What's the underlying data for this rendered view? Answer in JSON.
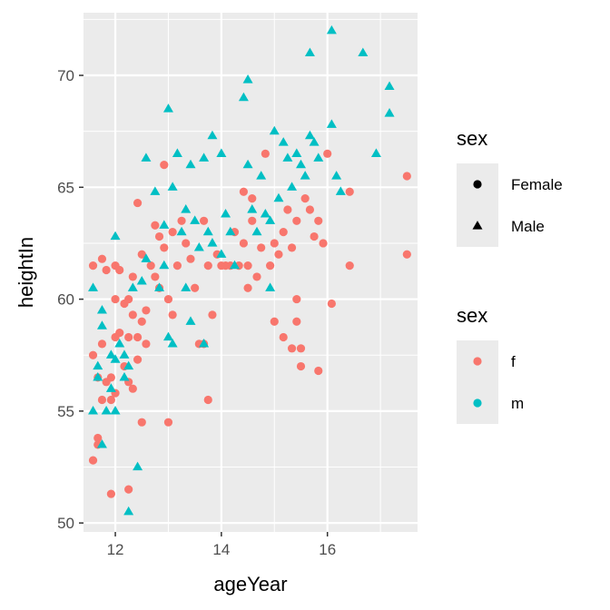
{
  "chart_data": {
    "type": "scatter",
    "xlabel": "ageYear",
    "ylabel": "heightIn",
    "xlim": [
      11.4,
      17.7
    ],
    "ylim": [
      49.6,
      72.8
    ],
    "x_ticks": [
      12,
      14,
      16
    ],
    "y_ticks": [
      50,
      55,
      60,
      65,
      70
    ],
    "grid": true,
    "colors": {
      "f": "#F8766D",
      "m": "#00BFC4"
    },
    "legends": [
      {
        "title": "sex",
        "kind": "shape",
        "entries": [
          {
            "label": "Female",
            "shape": "circle"
          },
          {
            "label": "Male",
            "shape": "triangle"
          }
        ]
      },
      {
        "title": "sex",
        "kind": "color",
        "entries": [
          {
            "label": "f",
            "color": "#F8766D"
          },
          {
            "label": "m",
            "color": "#00BFC4"
          }
        ]
      }
    ],
    "legend_position": "right",
    "series": [
      {
        "name": "f",
        "shape": "circle",
        "color": "#F8766D",
        "points": [
          [
            11.58,
            61.5
          ],
          [
            11.58,
            57.5
          ],
          [
            11.58,
            52.8
          ],
          [
            11.67,
            53.8
          ],
          [
            11.67,
            53.5
          ],
          [
            11.67,
            56.5
          ],
          [
            11.75,
            61.8
          ],
          [
            11.75,
            58.0
          ],
          [
            11.75,
            55.5
          ],
          [
            11.83,
            61.3
          ],
          [
            11.83,
            56.3
          ],
          [
            11.92,
            56.5
          ],
          [
            11.92,
            55.5
          ],
          [
            11.92,
            51.3
          ],
          [
            12.0,
            61.5
          ],
          [
            12.0,
            60.0
          ],
          [
            12.0,
            58.3
          ],
          [
            12.0,
            55.8
          ],
          [
            12.08,
            61.3
          ],
          [
            12.08,
            58.5
          ],
          [
            12.17,
            59.8
          ],
          [
            12.17,
            57.0
          ],
          [
            12.25,
            60.0
          ],
          [
            12.25,
            58.3
          ],
          [
            12.25,
            56.3
          ],
          [
            12.25,
            51.5
          ],
          [
            12.33,
            61.0
          ],
          [
            12.33,
            59.3
          ],
          [
            12.33,
            56.0
          ],
          [
            12.42,
            64.3
          ],
          [
            12.42,
            58.3
          ],
          [
            12.42,
            57.3
          ],
          [
            12.5,
            62.0
          ],
          [
            12.5,
            59.0
          ],
          [
            12.5,
            54.5
          ],
          [
            12.58,
            59.5
          ],
          [
            12.58,
            58.0
          ],
          [
            12.67,
            61.5
          ],
          [
            12.75,
            63.3
          ],
          [
            12.75,
            61.0
          ],
          [
            12.83,
            62.8
          ],
          [
            12.83,
            60.5
          ],
          [
            12.92,
            66.0
          ],
          [
            12.92,
            62.3
          ],
          [
            13.0,
            60.0
          ],
          [
            13.0,
            54.5
          ],
          [
            13.08,
            63.0
          ],
          [
            13.08,
            59.3
          ],
          [
            13.17,
            61.5
          ],
          [
            13.25,
            63.5
          ],
          [
            13.33,
            62.5
          ],
          [
            13.42,
            61.8
          ],
          [
            13.5,
            60.5
          ],
          [
            13.58,
            58.0
          ],
          [
            13.67,
            63.5
          ],
          [
            13.67,
            58.0
          ],
          [
            13.75,
            61.5
          ],
          [
            13.75,
            55.5
          ],
          [
            13.83,
            59.3
          ],
          [
            13.92,
            62.0
          ],
          [
            14.0,
            61.5
          ],
          [
            14.08,
            61.5
          ],
          [
            14.17,
            61.5
          ],
          [
            14.25,
            63.0
          ],
          [
            14.33,
            61.5
          ],
          [
            14.42,
            64.8
          ],
          [
            14.42,
            62.5
          ],
          [
            14.5,
            61.5
          ],
          [
            14.5,
            60.5
          ],
          [
            14.58,
            64.5
          ],
          [
            14.58,
            63.5
          ],
          [
            14.67,
            61.0
          ],
          [
            14.75,
            62.3
          ],
          [
            14.83,
            66.5
          ],
          [
            14.92,
            61.5
          ],
          [
            15.0,
            62.5
          ],
          [
            15.0,
            59.0
          ],
          [
            15.08,
            62.0
          ],
          [
            15.17,
            63.0
          ],
          [
            15.17,
            58.3
          ],
          [
            15.25,
            64.0
          ],
          [
            15.33,
            62.3
          ],
          [
            15.33,
            57.8
          ],
          [
            15.42,
            63.5
          ],
          [
            15.42,
            60.0
          ],
          [
            15.42,
            59.0
          ],
          [
            15.5,
            57.8
          ],
          [
            15.5,
            57.0
          ],
          [
            15.58,
            64.5
          ],
          [
            15.67,
            64.0
          ],
          [
            15.75,
            62.8
          ],
          [
            15.83,
            63.5
          ],
          [
            15.83,
            56.8
          ],
          [
            15.92,
            62.5
          ],
          [
            16.0,
            66.5
          ],
          [
            16.08,
            59.8
          ],
          [
            16.42,
            64.8
          ],
          [
            16.42,
            61.5
          ],
          [
            17.5,
            65.5
          ],
          [
            17.5,
            62.0
          ]
        ]
      },
      {
        "name": "m",
        "shape": "triangle",
        "color": "#00BFC4",
        "points": [
          [
            11.58,
            60.5
          ],
          [
            11.58,
            55.0
          ],
          [
            11.67,
            57.0
          ],
          [
            11.67,
            56.5
          ],
          [
            11.75,
            59.5
          ],
          [
            11.75,
            58.8
          ],
          [
            11.75,
            53.5
          ],
          [
            11.83,
            55.0
          ],
          [
            11.92,
            57.5
          ],
          [
            11.92,
            56.0
          ],
          [
            12.0,
            62.8
          ],
          [
            12.0,
            57.3
          ],
          [
            12.0,
            55.0
          ],
          [
            12.08,
            58.0
          ],
          [
            12.17,
            57.5
          ],
          [
            12.17,
            56.5
          ],
          [
            12.25,
            57.0
          ],
          [
            12.25,
            50.5
          ],
          [
            12.33,
            60.5
          ],
          [
            12.42,
            52.5
          ],
          [
            12.5,
            60.8
          ],
          [
            12.58,
            66.3
          ],
          [
            12.58,
            61.8
          ],
          [
            12.75,
            64.8
          ],
          [
            12.83,
            60.5
          ],
          [
            12.92,
            63.3
          ],
          [
            12.92,
            61.5
          ],
          [
            13.0,
            68.5
          ],
          [
            13.0,
            58.3
          ],
          [
            13.08,
            65.0
          ],
          [
            13.08,
            58.0
          ],
          [
            13.17,
            66.5
          ],
          [
            13.25,
            63.0
          ],
          [
            13.33,
            64.0
          ],
          [
            13.33,
            60.5
          ],
          [
            13.42,
            66.0
          ],
          [
            13.42,
            59.0
          ],
          [
            13.5,
            63.5
          ],
          [
            13.58,
            62.3
          ],
          [
            13.67,
            66.3
          ],
          [
            13.67,
            58.0
          ],
          [
            13.75,
            63.0
          ],
          [
            13.83,
            67.3
          ],
          [
            13.83,
            62.5
          ],
          [
            14.0,
            66.5
          ],
          [
            14.0,
            62.0
          ],
          [
            14.08,
            63.8
          ],
          [
            14.17,
            63.0
          ],
          [
            14.25,
            61.5
          ],
          [
            14.42,
            69.0
          ],
          [
            14.5,
            69.8
          ],
          [
            14.5,
            66.0
          ],
          [
            14.58,
            64.0
          ],
          [
            14.67,
            63.0
          ],
          [
            14.75,
            65.5
          ],
          [
            14.83,
            63.8
          ],
          [
            14.92,
            63.5
          ],
          [
            14.92,
            60.5
          ],
          [
            15.0,
            67.5
          ],
          [
            15.08,
            64.5
          ],
          [
            15.17,
            67.0
          ],
          [
            15.25,
            66.3
          ],
          [
            15.33,
            65.0
          ],
          [
            15.42,
            66.5
          ],
          [
            15.5,
            66.0
          ],
          [
            15.58,
            65.5
          ],
          [
            15.67,
            71.0
          ],
          [
            15.67,
            67.3
          ],
          [
            15.75,
            67.0
          ],
          [
            15.83,
            66.3
          ],
          [
            16.08,
            72.0
          ],
          [
            16.08,
            67.8
          ],
          [
            16.17,
            65.5
          ],
          [
            16.25,
            64.8
          ],
          [
            16.67,
            71.0
          ],
          [
            16.92,
            66.5
          ],
          [
            17.17,
            69.5
          ],
          [
            17.17,
            68.3
          ]
        ]
      }
    ]
  }
}
